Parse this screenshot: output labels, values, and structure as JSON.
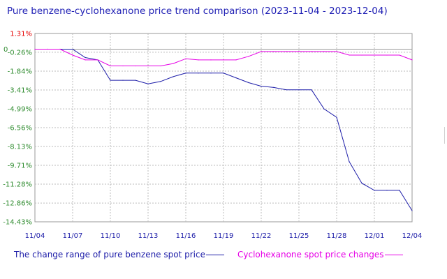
{
  "title": "Pure benzene-cyclohexanone price trend comparison (2023-11-04 - 2023-12-04)",
  "colors": {
    "title": "#1e1eb4",
    "benzene": "#1c1ca8",
    "cyclohexanone": "#e600e6",
    "positive_tick": "#e60000",
    "negative_tick": "#2e8b2e",
    "grid": "#bbbbbb",
    "zero_line": "#999999",
    "axis_text": "#1c1ca8"
  },
  "legend": {
    "benzene_label": "The change range of pure benzene spot price",
    "cyclohexanone_label": "Cyclohexanone spot price changes"
  },
  "chart_data": {
    "type": "line",
    "title": "Pure benzene-cyclohexanone price trend comparison (2023-11-04 - 2023-12-04)",
    "xlabel": "",
    "ylabel": "",
    "x_ticks": [
      "11/04",
      "11/07",
      "11/10",
      "11/13",
      "11/16",
      "11/19",
      "11/22",
      "11/25",
      "11/28",
      "12/01",
      "12/04"
    ],
    "y_ticks": [
      "1.31%",
      "-0.26%",
      "-1.84%",
      "-3.41%",
      "-4.99%",
      "-6.56%",
      "-8.13%",
      "-9.71%",
      "-11.28%",
      "-12.86%",
      "-14.43%"
    ],
    "y_tick_values": [
      1.31,
      -0.26,
      -1.84,
      -3.41,
      -4.99,
      -6.56,
      -8.13,
      -9.71,
      -11.28,
      -12.86,
      -14.43
    ],
    "zero_label": "0",
    "ylim": [
      -14.43,
      1.31
    ],
    "xlim": [
      "2023-11-04",
      "2023-12-04"
    ],
    "grid": true,
    "legend_position": "bottom",
    "x": [
      "2023-11-04",
      "2023-11-05",
      "2023-11-06",
      "2023-11-07",
      "2023-11-08",
      "2023-11-09",
      "2023-11-10",
      "2023-11-11",
      "2023-11-12",
      "2023-11-13",
      "2023-11-14",
      "2023-11-15",
      "2023-11-16",
      "2023-11-17",
      "2023-11-18",
      "2023-11-19",
      "2023-11-20",
      "2023-11-21",
      "2023-11-22",
      "2023-11-23",
      "2023-11-24",
      "2023-11-25",
      "2023-11-26",
      "2023-11-27",
      "2023-11-28",
      "2023-11-29",
      "2023-11-30",
      "2023-12-01",
      "2023-12-02",
      "2023-12-03",
      "2023-12-04"
    ],
    "series": [
      {
        "name": "The change range of pure benzene spot price",
        "values": [
          0,
          0,
          0,
          0,
          -0.7,
          -0.9,
          -2.6,
          -2.6,
          -2.6,
          -2.9,
          -2.7,
          -2.3,
          -2.0,
          -2.0,
          -2.0,
          -2.0,
          -2.4,
          -2.8,
          -3.1,
          -3.2,
          -3.4,
          -3.4,
          -3.4,
          -5.0,
          -5.7,
          -9.4,
          -11.2,
          -11.8,
          -11.8,
          -11.8,
          -13.5
        ]
      },
      {
        "name": "Cyclohexanone spot price changes",
        "values": [
          0,
          0,
          0,
          -0.5,
          -0.9,
          -0.9,
          -1.4,
          -1.4,
          -1.4,
          -1.4,
          -1.4,
          -1.2,
          -0.8,
          -0.9,
          -0.9,
          -0.9,
          -0.9,
          -0.6,
          -0.2,
          -0.2,
          -0.2,
          -0.2,
          -0.2,
          -0.2,
          -0.2,
          -0.5,
          -0.5,
          -0.5,
          -0.5,
          -0.5,
          -0.9
        ]
      }
    ]
  }
}
